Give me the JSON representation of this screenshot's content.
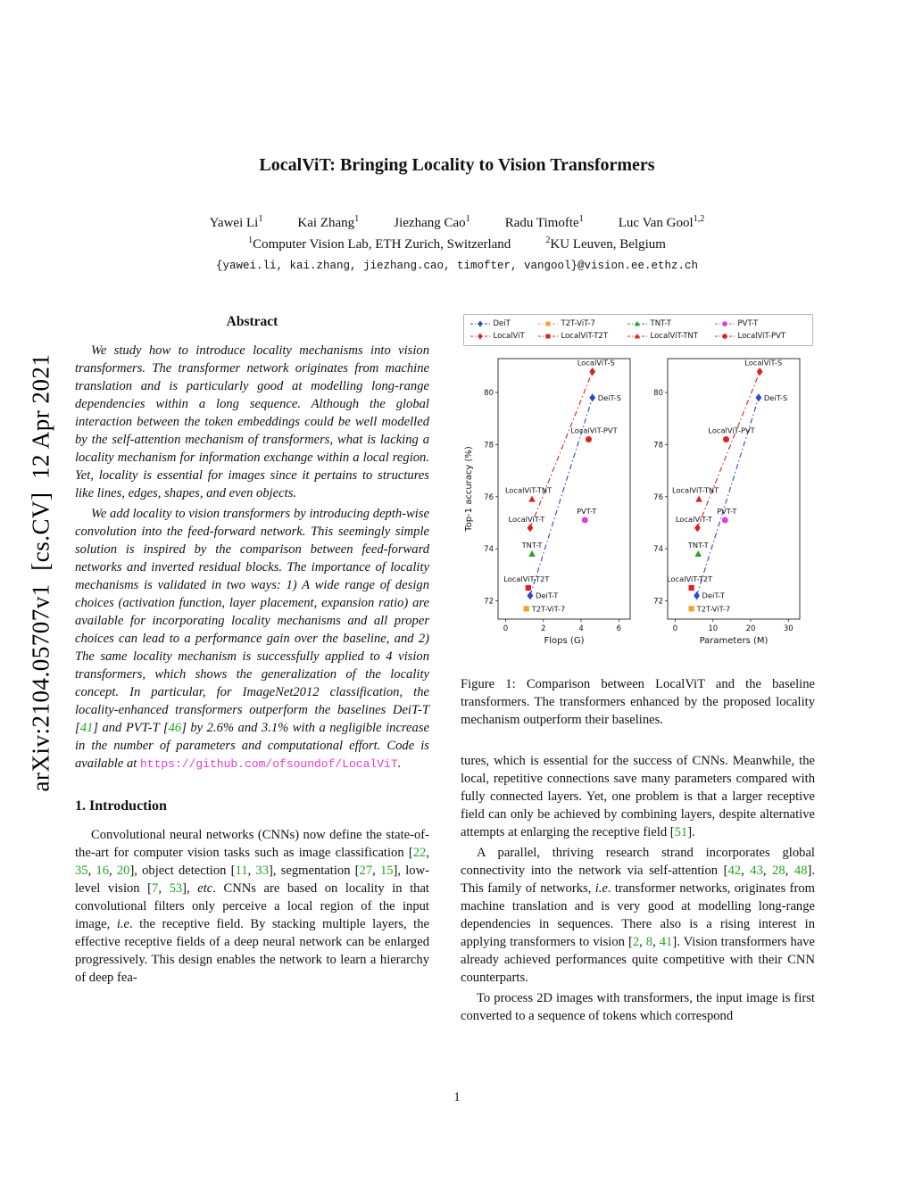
{
  "header": {
    "title": "LocalViT: Bringing Locality to Vision Transformers",
    "authors_segments": [
      {
        "t": "p",
        "s": "Yawei Li"
      },
      {
        "t": "sup",
        "s": "1"
      },
      {
        "t": "gap",
        "s": ""
      },
      {
        "t": "p",
        "s": "Kai Zhang"
      },
      {
        "t": "sup",
        "s": "1"
      },
      {
        "t": "gap",
        "s": ""
      },
      {
        "t": "p",
        "s": "Jiezhang Cao"
      },
      {
        "t": "sup",
        "s": "1"
      },
      {
        "t": "gap",
        "s": ""
      },
      {
        "t": "p",
        "s": "Radu Timofte"
      },
      {
        "t": "sup",
        "s": "1"
      },
      {
        "t": "gap",
        "s": ""
      },
      {
        "t": "p",
        "s": "Luc Van Gool"
      },
      {
        "t": "sup",
        "s": "1,2"
      }
    ],
    "affiliations_segments": [
      {
        "t": "sup",
        "s": "1"
      },
      {
        "t": "p",
        "s": "Computer Vision Lab, ETH Zurich, Switzerland"
      },
      {
        "t": "gap",
        "s": ""
      },
      {
        "t": "sup",
        "s": "2"
      },
      {
        "t": "p",
        "s": "KU Leuven, Belgium"
      }
    ],
    "emails": "{yawei.li, kai.zhang, jiezhang.cao, timofter, vangool}@vision.ee.ethz.ch"
  },
  "sidebar": {
    "arxiv_label": "arXiv:2104.05707v1  [cs.CV]  12 Apr 2021"
  },
  "abstract": {
    "heading": "Abstract",
    "paragraphs": [
      [
        {
          "t": "p",
          "s": "We study how to introduce locality mechanisms into vision transformers. The transformer network originates from machine translation and is particularly good at modelling long-range dependencies within a long sequence. Although the global interaction between the token embeddings could be well modelled by the self-attention mechanism of transformers, what is lacking a locality mechanism for information exchange within a local region. Yet, locality is essential for images since it pertains to structures like lines, edges, shapes, and even objects."
        }
      ],
      [
        {
          "t": "p",
          "s": "We add locality to vision transformers by introducing depth-wise convolution into the feed-forward network. This seemingly simple solution is inspired by the comparison between feed-forward networks and inverted residual blocks. The importance of locality mechanisms is validated in two ways: 1) A wide range of design choices (activation function, layer placement, expansion ratio) are available for incorporating locality mechanisms and all proper choices can lead to a performance gain over the baseline, and 2) The same locality mechanism is successfully applied to 4 vision transformers, which shows the generalization of the locality concept. In particular, for ImageNet2012 classification, the locality-enhanced transformers outperform the baselines DeiT-T ["
        },
        {
          "t": "c",
          "s": "41"
        },
        {
          "t": "p",
          "s": "] and PVT-T ["
        },
        {
          "t": "c",
          "s": "46"
        },
        {
          "t": "p",
          "s": "] by 2.6% and 3.1% with a negligible increase in the number of parameters and computational effort. Code is available at "
        },
        {
          "t": "l",
          "s": "https://github.com/ofsoundof/LocalViT"
        },
        {
          "t": "p",
          "s": "."
        }
      ]
    ]
  },
  "introduction": {
    "heading": "1. Introduction",
    "paragraphs": [
      [
        {
          "t": "p",
          "s": "Convolutional neural networks (CNNs) now define the state-of-the-art for computer vision tasks such as image classification ["
        },
        {
          "t": "c",
          "s": "22"
        },
        {
          "t": "p",
          "s": ", "
        },
        {
          "t": "c",
          "s": "35"
        },
        {
          "t": "p",
          "s": ", "
        },
        {
          "t": "c",
          "s": "16"
        },
        {
          "t": "p",
          "s": ", "
        },
        {
          "t": "c",
          "s": "20"
        },
        {
          "t": "p",
          "s": "], object detection ["
        },
        {
          "t": "c",
          "s": "11"
        },
        {
          "t": "p",
          "s": ", "
        },
        {
          "t": "c",
          "s": "33"
        },
        {
          "t": "p",
          "s": "], segmentation ["
        },
        {
          "t": "c",
          "s": "27"
        },
        {
          "t": "p",
          "s": ", "
        },
        {
          "t": "c",
          "s": "15"
        },
        {
          "t": "p",
          "s": "], low-level vision ["
        },
        {
          "t": "c",
          "s": "7"
        },
        {
          "t": "p",
          "s": ", "
        },
        {
          "t": "c",
          "s": "53"
        },
        {
          "t": "p",
          "s": "], "
        },
        {
          "t": "i",
          "s": "etc"
        },
        {
          "t": "p",
          "s": ". CNNs are based on locality in that convolutional filters only perceive a local region of the input image, "
        },
        {
          "t": "i",
          "s": "i.e"
        },
        {
          "t": "p",
          "s": ". the receptive field. By stacking multiple layers, the effective receptive fields of a deep neural network can be enlarged progressively. This design enables the network to learn a hierarchy of deep fea-"
        }
      ]
    ]
  },
  "figure1": {
    "caption": "Figure 1: Comparison between LocalViT and the baseline transformers. The transformers enhanced by the proposed locality mechanism outperform their baselines.",
    "chart_data": {
      "type": "scatter",
      "ylabel": "Top-1 accuracy (%)",
      "ylim": [
        71.3,
        81.3
      ],
      "yticks": [
        72,
        74,
        76,
        78,
        80
      ],
      "legend_position": "top",
      "grid": false,
      "legend": [
        {
          "name": "DeiT",
          "marker": "diamond",
          "color": "#2b47cf"
        },
        {
          "name": "T2T-ViT-7",
          "marker": "square",
          "color": "#f5a22d"
        },
        {
          "name": "TNT-T",
          "marker": "triangle",
          "color": "#2d9e2d"
        },
        {
          "name": "PVT-T",
          "marker": "circle",
          "color": "#df3ddf"
        },
        {
          "name": "LocalViT",
          "marker": "diamond",
          "color": "#dc2020"
        },
        {
          "name": "LocalViT-T2T",
          "marker": "square",
          "color": "#dc2020"
        },
        {
          "name": "LocalViT-TNT",
          "marker": "triangle",
          "color": "#dc2020"
        },
        {
          "name": "LocalViT-PVT",
          "marker": "circle",
          "color": "#dc2020"
        }
      ],
      "subplots": [
        {
          "xkey": "flops",
          "xlabel": "Flops (G)",
          "xlim": [
            -0.4,
            6.6
          ],
          "xticks": [
            0,
            2,
            4,
            6
          ]
        },
        {
          "xkey": "params",
          "xlabel": "Parameters (M)",
          "xlim": [
            -2,
            33
          ],
          "xticks": [
            0,
            10,
            20,
            30
          ]
        }
      ],
      "points": [
        {
          "label": "T2T-ViT-7",
          "series": "T2T-ViT-7",
          "flops": 1.1,
          "params": 4.3,
          "acc": 71.7
        },
        {
          "label": "DeiT-T",
          "series": "DeiT",
          "flops": 1.3,
          "params": 5.7,
          "acc": 72.2
        },
        {
          "label": "LocalViT-T2T",
          "series": "LocalViT-T2T",
          "flops": 1.2,
          "params": 4.3,
          "acc": 72.5
        },
        {
          "label": "TNT-T",
          "series": "TNT-T",
          "flops": 1.4,
          "params": 6.1,
          "acc": 73.8
        },
        {
          "label": "LocalViT-T",
          "series": "LocalViT",
          "flops": 1.3,
          "params": 5.9,
          "acc": 74.8
        },
        {
          "label": "PVT-T",
          "series": "PVT-T",
          "flops": 4.2,
          "params": 13.2,
          "acc": 75.1
        },
        {
          "label": "LocalViT-TNT",
          "series": "LocalViT-TNT",
          "flops": 1.4,
          "params": 6.3,
          "acc": 75.9
        },
        {
          "label": "LocalViT-PVT",
          "series": "LocalViT-PVT",
          "flops": 4.4,
          "params": 13.5,
          "acc": 78.2
        },
        {
          "label": "DeiT-S",
          "series": "DeiT",
          "flops": 4.6,
          "params": 22.1,
          "acc": 79.8
        },
        {
          "label": "LocalViT-S",
          "series": "LocalViT",
          "flops": 4.6,
          "params": 22.4,
          "acc": 80.8
        }
      ],
      "lines": [
        {
          "from": "DeiT-T",
          "to": "DeiT-S",
          "series": "DeiT",
          "style": "dashdot"
        },
        {
          "from": "LocalViT-T",
          "to": "LocalViT-S",
          "series": "LocalViT",
          "style": "dashdot"
        }
      ]
    }
  },
  "body_right": {
    "paragraphs": [
      [
        {
          "t": "p",
          "s": "tures, which is essential for the success of CNNs. Meanwhile, the local, repetitive connections save many parameters compared with fully connected layers. Yet, one problem is that a larger receptive field can only be achieved by combining layers, despite alternative attempts at enlarging the receptive field ["
        },
        {
          "t": "c",
          "s": "51"
        },
        {
          "t": "p",
          "s": "]."
        }
      ],
      [
        {
          "t": "p",
          "s": "A parallel, thriving research strand incorporates global connectivity into the network via self-attention ["
        },
        {
          "t": "c",
          "s": "42"
        },
        {
          "t": "p",
          "s": ", "
        },
        {
          "t": "c",
          "s": "43"
        },
        {
          "t": "p",
          "s": ", "
        },
        {
          "t": "c",
          "s": "28"
        },
        {
          "t": "p",
          "s": ", "
        },
        {
          "t": "c",
          "s": "48"
        },
        {
          "t": "p",
          "s": "]. This family of networks, "
        },
        {
          "t": "i",
          "s": "i.e"
        },
        {
          "t": "p",
          "s": ". transformer networks, originates from machine translation and is very good at modelling long-range dependencies in sequences. There also is a rising interest in applying transformers to vision ["
        },
        {
          "t": "c",
          "s": "2"
        },
        {
          "t": "p",
          "s": ", "
        },
        {
          "t": "c",
          "s": "8"
        },
        {
          "t": "p",
          "s": ", "
        },
        {
          "t": "c",
          "s": "41"
        },
        {
          "t": "p",
          "s": "]. Vision transformers have already achieved performances quite competitive with their CNN counterparts."
        }
      ],
      [
        {
          "t": "p",
          "s": "To process 2D images with transformers, the input image is first converted to a sequence of tokens which correspond"
        }
      ]
    ]
  },
  "footer": {
    "page_number": "1"
  }
}
